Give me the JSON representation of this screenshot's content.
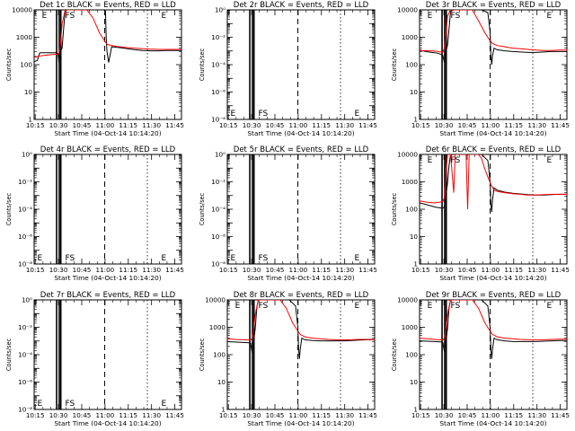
{
  "chart_data": [
    {
      "type": "line",
      "title": "Det 1c BLACK = Events, RED = LLD",
      "xlabel": "Start Time (04-Oct-14 10:14:20)",
      "ylabel": "Counts/sec",
      "yscale": "log",
      "ylim": [
        1,
        10000
      ],
      "yticklabels": [
        "1",
        "10",
        "100",
        "1000",
        "10000"
      ],
      "xticklabels": [
        "10:15",
        "10:30",
        "10:45",
        "11:00",
        "11:15",
        "11:30",
        "11:45"
      ],
      "xlim_minutes": [
        0,
        95
      ],
      "markers": [
        {
          "label": "E",
          "x": 5
        },
        {
          "label": "FS",
          "x": 20
        },
        {
          "label": "E",
          "x": 82
        }
      ],
      "series": [
        {
          "name": "BLACK = Events",
          "color": "#000000",
          "x": [
            0,
            2,
            3.5,
            4,
            14,
            15.5,
            16,
            17,
            18,
            19,
            20,
            21,
            22,
            24,
            28,
            35,
            40,
            45,
            46,
            46.5,
            47,
            48,
            50,
            55,
            60,
            65,
            70,
            75,
            80,
            85,
            90,
            95
          ],
          "y": [
            130,
            140,
            260,
            270,
            270,
            250,
            120,
            300,
            400,
            2000,
            9000,
            10000,
            10000,
            10000,
            10000,
            10000,
            10000,
            10000,
            9000,
            800,
            300,
            120,
            450,
            420,
            380,
            350,
            330,
            320,
            320,
            330,
            330,
            330
          ]
        },
        {
          "name": "RED = LLD",
          "color": "#ff0000",
          "x": [
            0,
            4,
            10,
            15,
            16,
            17,
            18,
            20,
            22,
            26,
            30,
            34,
            38,
            42,
            45,
            47,
            50,
            55,
            60,
            65,
            70,
            75,
            80,
            85,
            90,
            95
          ],
          "y": [
            180,
            210,
            230,
            240,
            260,
            600,
            3000,
            10000,
            10000,
            10000,
            10000,
            10000,
            5000,
            1500,
            800,
            550,
            500,
            450,
            420,
            400,
            380,
            370,
            360,
            360,
            360,
            360
          ]
        }
      ]
    },
    {
      "type": "line",
      "title": "Det 2r BLACK = Events, RED = LLD",
      "xlabel": "Start Time (04-Oct-14 10:14:20)",
      "ylabel": "Counts/sec",
      "yscale": "log",
      "ylim": [
        1e-08,
        1
      ],
      "yticklabels": [
        "10⁻⁸",
        "10⁻⁶",
        "10⁻⁴",
        "10⁻²",
        "10⁰"
      ],
      "xticklabels": [
        "10:15",
        "10:30",
        "10:45",
        "11:00",
        "11:15",
        "11:30",
        "11:45"
      ],
      "xlim_minutes": [
        0,
        95
      ],
      "markers": [
        {
          "label": "E",
          "x": 2
        },
        {
          "label": "FS",
          "x": 20
        },
        {
          "label": "E",
          "x": 82
        }
      ],
      "series": []
    },
    {
      "type": "line",
      "title": "Det 3r BLACK = Events, RED = LLD",
      "xlabel": "Start Time (04-Oct-14 10:14:20)",
      "ylabel": "Counts/sec",
      "yscale": "log",
      "ylim": [
        1,
        10000
      ],
      "yticklabels": [
        "1",
        "10",
        "100",
        "1000",
        "10000"
      ],
      "xticklabels": [
        "10:15",
        "10:30",
        "10:45",
        "11:00",
        "11:15",
        "11:30",
        "11:45"
      ],
      "xlim_minutes": [
        0,
        95
      ],
      "markers": [
        {
          "label": "E",
          "x": 5
        },
        {
          "label": "FS",
          "x": 20
        },
        {
          "label": "E",
          "x": 82
        }
      ],
      "series": [
        {
          "name": "BLACK = Events",
          "color": "#000000",
          "x": [
            0,
            2,
            4,
            8,
            12,
            15,
            16,
            17,
            18,
            19,
            20,
            22,
            26,
            30,
            36,
            40,
            44,
            45.5,
            46,
            46.5,
            47,
            48,
            50,
            55,
            60,
            65,
            70,
            75,
            80,
            85,
            90,
            95
          ],
          "y": [
            350,
            320,
            300,
            280,
            260,
            220,
            120,
            300,
            500,
            2000,
            9000,
            10000,
            10000,
            10000,
            10000,
            10000,
            8000,
            1500,
            200,
            100,
            200,
            400,
            350,
            320,
            300,
            290,
            280,
            280,
            290,
            300,
            300,
            300
          ]
        },
        {
          "name": "RED = LLD",
          "color": "#ff0000",
          "x": [
            0,
            4,
            8,
            12,
            15,
            16,
            17,
            18,
            20,
            24,
            30,
            34,
            38,
            42,
            45,
            47,
            50,
            55,
            60,
            65,
            70,
            75,
            80,
            85,
            90,
            95
          ],
          "y": [
            330,
            320,
            320,
            300,
            280,
            400,
            1200,
            6000,
            10000,
            10000,
            10000,
            10000,
            4000,
            1500,
            800,
            600,
            500,
            450,
            400,
            380,
            360,
            340,
            330,
            330,
            340,
            340
          ]
        }
      ]
    },
    {
      "type": "line",
      "title": "Det 4r BLACK = Events, RED = LLD",
      "xlabel": "Start Time (04-Oct-14 10:14:20)",
      "ylabel": "Counts/sec",
      "yscale": "log",
      "ylim": [
        1e-08,
        1
      ],
      "yticklabels": [
        "10⁻⁸",
        "10⁻⁶",
        "10⁻⁴",
        "10⁻²",
        "10⁰"
      ],
      "xticklabels": [
        "10:15",
        "10:30",
        "10:45",
        "11:00",
        "11:15",
        "11:30",
        "11:45"
      ],
      "xlim_minutes": [
        0,
        95
      ],
      "markers": [
        {
          "label": "E",
          "x": 2
        },
        {
          "label": "FS",
          "x": 20
        },
        {
          "label": "E",
          "x": 82
        }
      ],
      "series": []
    },
    {
      "type": "line",
      "title": "Det 5r BLACK = Events, RED = LLD",
      "xlabel": "Start Time (04-Oct-14 10:14:20)",
      "ylabel": "Counts/sec",
      "yscale": "log",
      "ylim": [
        1e-08,
        1
      ],
      "yticklabels": [
        "10⁻⁸",
        "10⁻⁶",
        "10⁻⁴",
        "10⁻²",
        "10⁰"
      ],
      "xticklabels": [
        "10:15",
        "10:30",
        "10:45",
        "11:00",
        "11:15",
        "11:30",
        "11:45"
      ],
      "xlim_minutes": [
        0,
        95
      ],
      "markers": [
        {
          "label": "E",
          "x": 2
        },
        {
          "label": "FS",
          "x": 20
        },
        {
          "label": "E",
          "x": 82
        }
      ],
      "series": []
    },
    {
      "type": "line",
      "title": "Det 6r BLACK = Events, RED = LLD",
      "xlabel": "Start Time (04-Oct-14 10:14:20)",
      "ylabel": "Counts/sec",
      "yscale": "log",
      "ylim": [
        1,
        10000
      ],
      "yticklabels": [
        "1",
        "10",
        "100",
        "1000",
        "10000"
      ],
      "xticklabels": [
        "10:15",
        "10:30",
        "10:45",
        "11:00",
        "11:15",
        "11:30",
        "11:45"
      ],
      "xlim_minutes": [
        0,
        95
      ],
      "markers": [
        {
          "label": "E",
          "x": 5
        },
        {
          "label": "FS",
          "x": 20
        },
        {
          "label": "E",
          "x": 82
        }
      ],
      "series": [
        {
          "name": "BLACK = Events",
          "color": "#000000",
          "x": [
            0,
            4,
            10,
            14,
            15,
            16,
            17,
            18,
            19,
            20,
            24,
            30,
            36,
            40,
            44,
            45.5,
            46,
            46.5,
            47,
            48,
            50,
            55,
            60,
            65,
            70,
            75,
            80,
            85,
            90,
            95
          ],
          "y": [
            170,
            150,
            120,
            110,
            110,
            120,
            300,
            900,
            4000,
            10000,
            10000,
            10000,
            10000,
            10000,
            6000,
            1000,
            150,
            80,
            200,
            600,
            500,
            420,
            380,
            360,
            340,
            330,
            330,
            340,
            350,
            350
          ]
        },
        {
          "name": "RED = LLD",
          "color": "#ff0000",
          "x": [
            0,
            5,
            10,
            15,
            16,
            17,
            18,
            19,
            20,
            21,
            22,
            23,
            24,
            25,
            26,
            28,
            30,
            31,
            32,
            33,
            35,
            36,
            38,
            40,
            42,
            44,
            46,
            48,
            50,
            55,
            60,
            65,
            70,
            75,
            80,
            85,
            90,
            95
          ],
          "y": [
            200,
            180,
            170,
            190,
            260,
            2000,
            10000,
            10000,
            10000,
            2000,
            400,
            10000,
            10000,
            10000,
            10000,
            10000,
            10000,
            100,
            10000,
            10000,
            10000,
            10000,
            10000,
            7000,
            3000,
            1500,
            800,
            500,
            450,
            400,
            370,
            350,
            330,
            330,
            340,
            350,
            350,
            350
          ]
        }
      ]
    },
    {
      "type": "line",
      "title": "Det 7r BLACK = Events, RED = LLD",
      "xlabel": "Start Time (04-Oct-14 10:14:20)",
      "ylabel": "Counts/sec",
      "yscale": "log",
      "ylim": [
        1e-08,
        1
      ],
      "yticklabels": [
        "10⁻⁸",
        "10⁻⁶",
        "10⁻⁴",
        "10⁻²",
        "10⁰"
      ],
      "xticklabels": [
        "10:15",
        "10:30",
        "10:45",
        "11:00",
        "11:15",
        "11:30",
        "11:45"
      ],
      "xlim_minutes": [
        0,
        95
      ],
      "markers": [
        {
          "label": "E",
          "x": 2
        },
        {
          "label": "FS",
          "x": 20
        },
        {
          "label": "E",
          "x": 82
        }
      ],
      "series": []
    },
    {
      "type": "line",
      "title": "Det 8r BLACK = Events, RED = LLD",
      "xlabel": "Start Time (04-Oct-14 10:14:20)",
      "ylabel": "Counts/sec",
      "yscale": "log",
      "ylim": [
        1,
        10000
      ],
      "yticklabels": [
        "1",
        "10",
        "100",
        "1000",
        "10000"
      ],
      "xticklabels": [
        "10:15",
        "10:30",
        "10:45",
        "11:00",
        "11:15",
        "11:30",
        "11:45"
      ],
      "xlim_minutes": [
        0,
        95
      ],
      "markers": [
        {
          "label": "E",
          "x": 5
        },
        {
          "label": "FS",
          "x": 20
        },
        {
          "label": "E",
          "x": 82
        }
      ],
      "series": [
        {
          "name": "BLACK = Events",
          "color": "#000000",
          "x": [
            0,
            5,
            10,
            14,
            15,
            16,
            17,
            18,
            19,
            20,
            24,
            30,
            36,
            40,
            44,
            45.5,
            46,
            46.5,
            47,
            48,
            50,
            55,
            60,
            65,
            70,
            75,
            80,
            85,
            90,
            95
          ],
          "y": [
            300,
            290,
            280,
            270,
            260,
            120,
            300,
            900,
            5000,
            10000,
            10000,
            10000,
            10000,
            10000,
            6000,
            1000,
            150,
            70,
            150,
            400,
            350,
            330,
            320,
            320,
            320,
            320,
            330,
            340,
            350,
            350
          ]
        },
        {
          "name": "RED = LLD",
          "color": "#ff0000",
          "x": [
            0,
            5,
            10,
            15,
            16,
            17,
            18,
            20,
            24,
            30,
            34,
            38,
            42,
            45,
            47,
            50,
            55,
            60,
            65,
            70,
            75,
            80,
            85,
            90,
            95
          ],
          "y": [
            380,
            360,
            350,
            340,
            400,
            900,
            3000,
            10000,
            10000,
            10000,
            10000,
            5000,
            1500,
            800,
            550,
            450,
            400,
            380,
            360,
            350,
            350,
            350,
            360,
            360,
            360
          ]
        }
      ]
    },
    {
      "type": "line",
      "title": "Det 9r BLACK = Events, RED = LLD",
      "xlabel": "Start Time (04-Oct-14 10:14:20)",
      "ylabel": "Counts/sec",
      "yscale": "log",
      "ylim": [
        1,
        10000
      ],
      "yticklabels": [
        "1",
        "10",
        "100",
        "1000",
        "10000"
      ],
      "xticklabels": [
        "10:15",
        "10:30",
        "10:45",
        "11:00",
        "11:15",
        "11:30",
        "11:45"
      ],
      "xlim_minutes": [
        0,
        95
      ],
      "markers": [
        {
          "label": "E",
          "x": 5
        },
        {
          "label": "FS",
          "x": 20
        },
        {
          "label": "E",
          "x": 82
        }
      ],
      "series": [
        {
          "name": "BLACK = Events",
          "color": "#000000",
          "x": [
            0,
            5,
            10,
            14,
            15,
            16,
            17,
            18,
            19,
            20,
            24,
            30,
            36,
            40,
            44,
            45.5,
            46,
            46.5,
            47,
            48,
            50,
            55,
            60,
            65,
            70,
            75,
            80,
            85,
            90,
            95
          ],
          "y": [
            320,
            310,
            300,
            290,
            280,
            130,
            300,
            900,
            5000,
            10000,
            10000,
            10000,
            10000,
            10000,
            6000,
            1000,
            150,
            70,
            150,
            400,
            350,
            320,
            300,
            300,
            300,
            300,
            310,
            320,
            330,
            330
          ]
        },
        {
          "name": "RED = LLD",
          "color": "#ff0000",
          "x": [
            0,
            5,
            10,
            15,
            16,
            17,
            18,
            20,
            24,
            30,
            34,
            38,
            42,
            45,
            47,
            50,
            55,
            60,
            65,
            70,
            75,
            80,
            85,
            90,
            95
          ],
          "y": [
            400,
            380,
            360,
            340,
            400,
            900,
            3000,
            10000,
            10000,
            10000,
            10000,
            5000,
            1500,
            800,
            550,
            450,
            400,
            380,
            360,
            350,
            350,
            350,
            360,
            370,
            370
          ]
        }
      ]
    }
  ]
}
